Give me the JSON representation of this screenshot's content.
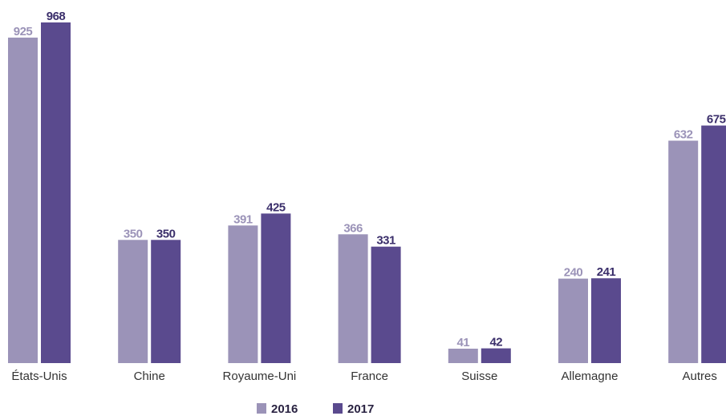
{
  "chart_data": {
    "type": "bar",
    "categories": [
      "États-Unis",
      "Chine",
      "Royaume-Uni",
      "France",
      "Suisse",
      "Allemagne",
      "Autres"
    ],
    "series": [
      {
        "name": "2016",
        "values": [
          925,
          350,
          391,
          366,
          41,
          240,
          632
        ],
        "color": "#9b93b8"
      },
      {
        "name": "2017",
        "values": [
          968,
          350,
          425,
          331,
          42,
          241,
          675
        ],
        "color": "#5a4a8e"
      }
    ],
    "title": "",
    "xlabel": "",
    "ylabel": "",
    "ylim": [
      0,
      968
    ],
    "grid": false,
    "legend": "bottom-center"
  }
}
